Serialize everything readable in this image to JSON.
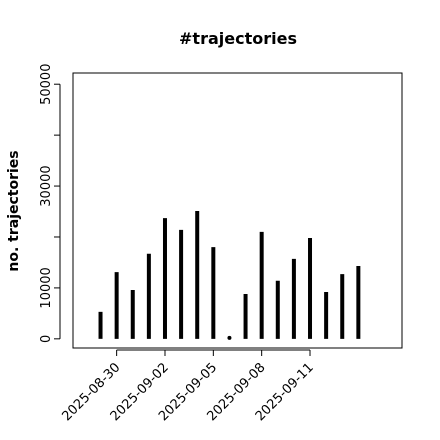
{
  "chart_data": {
    "type": "bar",
    "title": "#trajectories",
    "y_label": "no. trajectories",
    "x": [
      "2025-08-29",
      "2025-08-30",
      "2025-08-31",
      "2025-09-01",
      "2025-09-02",
      "2025-09-03",
      "2025-09-04",
      "2025-09-05",
      "2025-09-06",
      "2025-09-07",
      "2025-09-08",
      "2025-09-09",
      "2025-09-10",
      "2025-09-11",
      "2025-09-12",
      "2025-09-13",
      "2025-09-14"
    ],
    "values": [
      5300,
      13100,
      9600,
      16700,
      23700,
      21400,
      25100,
      18000,
      200,
      8800,
      21000,
      11400,
      15700,
      19800,
      9200,
      12700,
      14300
    ],
    "color": "#000000",
    "xlim": [
      "2025-08-27T07:00",
      "2025-09-16T17:00"
    ],
    "xticks": [
      "2025-08-30",
      "2025-09-02",
      "2025-09-05",
      "2025-09-08",
      "2025-09-11"
    ],
    "ylim": [
      -1800,
      52200
    ],
    "yticks": [
      0,
      10000,
      30000,
      50000
    ],
    "yticks_minor": [
      20000,
      40000
    ]
  }
}
